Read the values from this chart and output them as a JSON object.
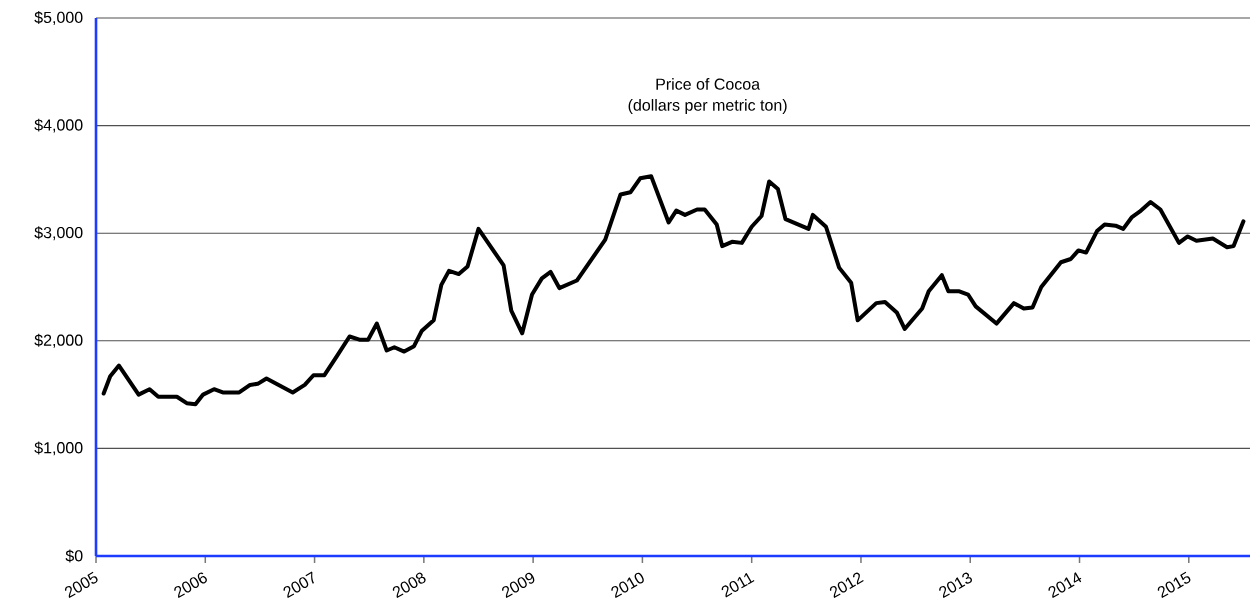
{
  "chart_data": {
    "type": "line",
    "title": "Price of Cocoa",
    "subtitle": "(dollars per metric ton)",
    "x": [
      2005.07,
      2005.13,
      2005.21,
      2005.39,
      2005.49,
      2005.57,
      2005.74,
      2005.83,
      2005.91,
      2005.98,
      2006.08,
      2006.16,
      2006.31,
      2006.41,
      2006.48,
      2006.56,
      2006.8,
      2006.91,
      2006.99,
      2007.09,
      2007.2,
      2007.32,
      2007.41,
      2007.49,
      2007.57,
      2007.66,
      2007.73,
      2007.82,
      2007.91,
      2007.98,
      2008.09,
      2008.16,
      2008.23,
      2008.32,
      2008.4,
      2008.5,
      2008.73,
      2008.8,
      2008.9,
      2008.99,
      2009.08,
      2009.16,
      2009.24,
      2009.4,
      2009.66,
      2009.8,
      2009.89,
      2009.98,
      2010.08,
      2010.24,
      2010.31,
      2010.39,
      2010.5,
      2010.57,
      2010.68,
      2010.73,
      2010.82,
      2010.91,
      2011.0,
      2011.09,
      2011.16,
      2011.24,
      2011.31,
      2011.52,
      2011.56,
      2011.68,
      2011.8,
      2011.91,
      2011.97,
      2012.14,
      2012.22,
      2012.33,
      2012.4,
      2012.56,
      2012.62,
      2012.74,
      2012.8,
      2012.9,
      2012.98,
      2013.05,
      2013.24,
      2013.4,
      2013.49,
      2013.57,
      2013.65,
      2013.83,
      2013.92,
      2013.99,
      2014.06,
      2014.16,
      2014.23,
      2014.33,
      2014.4,
      2014.48,
      2014.55,
      2014.65,
      2014.74,
      2014.91,
      2014.99,
      2015.07,
      2015.22,
      2015.35,
      2015.41,
      2015.5
    ],
    "series": [
      {
        "color": "#000000",
        "values": [
          1510,
          1670,
          1770,
          1500,
          1550,
          1480,
          1480,
          1420,
          1410,
          1500,
          1550,
          1520,
          1520,
          1590,
          1600,
          1650,
          1520,
          1590,
          1680,
          1680,
          1850,
          2040,
          2010,
          2010,
          2160,
          1910,
          1940,
          1900,
          1950,
          2090,
          2190,
          2520,
          2650,
          2620,
          2690,
          3040,
          2700,
          2280,
          2070,
          2430,
          2580,
          2640,
          2490,
          2560,
          2940,
          3360,
          3380,
          3510,
          3530,
          3100,
          3210,
          3170,
          3220,
          3220,
          3080,
          2880,
          2920,
          2910,
          3060,
          3160,
          3480,
          3410,
          3130,
          3040,
          3170,
          3060,
          2680,
          2540,
          2190,
          2350,
          2360,
          2260,
          2110,
          2300,
          2460,
          2610,
          2460,
          2460,
          2430,
          2320,
          2160,
          2350,
          2300,
          2310,
          2500,
          2730,
          2760,
          2840,
          2820,
          3020,
          3080,
          3070,
          3040,
          3150,
          3200,
          3290,
          3220,
          2910,
          2970,
          2930,
          2950,
          2870,
          2880,
          3110
        ]
      }
    ],
    "xlim": [
      2005,
      2015.56
    ],
    "xticks": [
      2005,
      2006,
      2007,
      2008,
      2009,
      2010,
      2011,
      2012,
      2013,
      2014,
      2015
    ],
    "ylim": [
      0,
      5000
    ],
    "yticks": [
      {
        "value": 0,
        "label": "$0"
      },
      {
        "value": 1000,
        "label": "$1,000"
      },
      {
        "value": 2000,
        "label": "$2,000"
      },
      {
        "value": 3000,
        "label": "$3,000"
      },
      {
        "value": 4000,
        "label": "$4,000"
      },
      {
        "value": 5000,
        "label": "$5,000"
      }
    ],
    "grid": "y"
  }
}
